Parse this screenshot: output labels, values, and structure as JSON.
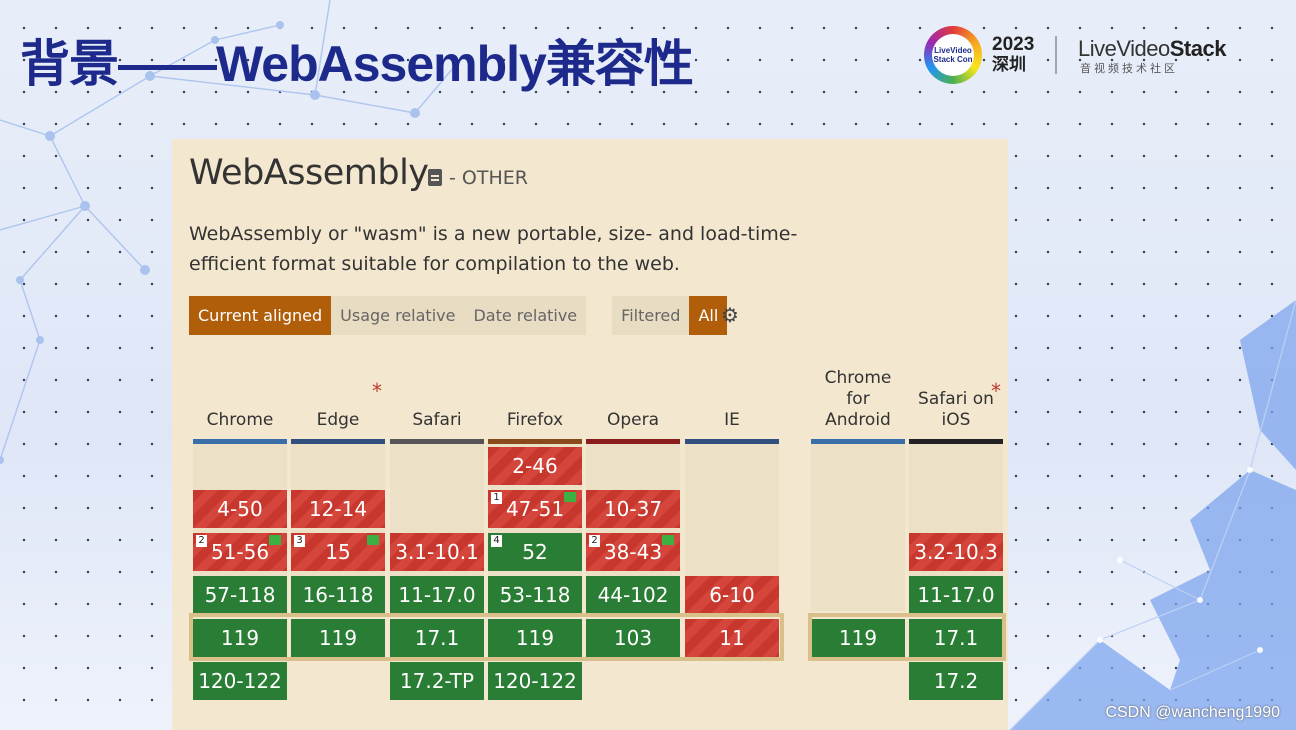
{
  "slide": {
    "title": "背景——WebAssembly兼容性",
    "watermark": "CSDN @wancheng1990"
  },
  "logo": {
    "ring_text": "LiveVideo Stack Con",
    "year": "2023",
    "city": "深圳",
    "brand_light": "LiveVideo",
    "brand_bold": "Stack",
    "subtitle": "音视频技术社区"
  },
  "feature": {
    "title": "WebAssembly",
    "category": "- OTHER",
    "description": "WebAssembly or \"wasm\" is a new portable, size- and load-time-efficient format suitable for compilation to the web."
  },
  "tabs": {
    "current_aligned": "Current aligned",
    "usage_relative": "Usage relative",
    "date_relative": "Date relative",
    "filtered": "Filtered",
    "all": "All",
    "settings_icon": "gear-icon"
  },
  "browsers": [
    {
      "name": "Chrome",
      "bar": "#3a6ea8",
      "star": false
    },
    {
      "name": "Edge",
      "bar": "#2f4f7f",
      "star": true
    },
    {
      "name": "Safari",
      "bar": "#555555",
      "star": false
    },
    {
      "name": "Firefox",
      "bar": "#8a4b1a",
      "star": false
    },
    {
      "name": "Opera",
      "bar": "#8a1c1c",
      "star": false
    },
    {
      "name": "IE",
      "bar": "#2f4f7f",
      "star": false
    },
    {
      "name": "Chrome for Android",
      "bar": "#3a6ea8",
      "star": false
    },
    {
      "name": "Safari on iOS",
      "bar": "#222222",
      "star": true
    }
  ],
  "support_table": {
    "Chrome": [
      {
        "row": 1,
        "label": "4-50",
        "status": "no"
      },
      {
        "row": 2,
        "label": "51-56",
        "status": "no",
        "note": "2",
        "flag": true
      },
      {
        "row": 3,
        "label": "57-118",
        "status": "yes"
      },
      {
        "row": 4,
        "label": "119",
        "status": "yes"
      },
      {
        "row": 5,
        "label": "120-122",
        "status": "yes"
      }
    ],
    "Edge": [
      {
        "row": 1,
        "label": "12-14",
        "status": "no"
      },
      {
        "row": 2,
        "label": "15",
        "status": "no",
        "note": "3",
        "flag": true
      },
      {
        "row": 3,
        "label": "16-118",
        "status": "yes"
      },
      {
        "row": 4,
        "label": "119",
        "status": "yes"
      }
    ],
    "Safari": [
      {
        "row": 2,
        "label": "3.1-10.1",
        "status": "no"
      },
      {
        "row": 3,
        "label": "11-17.0",
        "status": "yes"
      },
      {
        "row": 4,
        "label": "17.1",
        "status": "yes"
      },
      {
        "row": 5,
        "label": "17.2-TP",
        "status": "yes"
      }
    ],
    "Firefox": [
      {
        "row": 0,
        "label": "2-46",
        "status": "no"
      },
      {
        "row": 1,
        "label": "47-51",
        "status": "no",
        "note": "1",
        "flag": true
      },
      {
        "row": 2,
        "label": "52",
        "status": "yes",
        "note": "4"
      },
      {
        "row": 3,
        "label": "53-118",
        "status": "yes"
      },
      {
        "row": 4,
        "label": "119",
        "status": "yes"
      },
      {
        "row": 5,
        "label": "120-122",
        "status": "yes"
      }
    ],
    "Opera": [
      {
        "row": 1,
        "label": "10-37",
        "status": "no"
      },
      {
        "row": 2,
        "label": "38-43",
        "status": "no",
        "note": "2",
        "flag": true
      },
      {
        "row": 3,
        "label": "44-102",
        "status": "yes"
      },
      {
        "row": 4,
        "label": "103",
        "status": "yes"
      }
    ],
    "IE": [
      {
        "row": 3,
        "label": "6-10",
        "status": "no"
      },
      {
        "row": 4,
        "label": "11",
        "status": "no"
      }
    ],
    "Chrome for Android": [
      {
        "row": 4,
        "label": "119",
        "status": "yes"
      }
    ],
    "Safari on iOS": [
      {
        "row": 2,
        "label": "3.2-10.3",
        "status": "no"
      },
      {
        "row": 3,
        "label": "11-17.0",
        "status": "yes"
      },
      {
        "row": 4,
        "label": "17.1",
        "status": "yes"
      },
      {
        "row": 5,
        "label": "17.2",
        "status": "yes"
      }
    ]
  },
  "colors": {
    "title_blue": "#1d2a8c",
    "panel_bg": "#f3e7cf",
    "supported": "#2a7d35",
    "unsupported": "#c8372d",
    "active_tab": "#b05e0a"
  }
}
